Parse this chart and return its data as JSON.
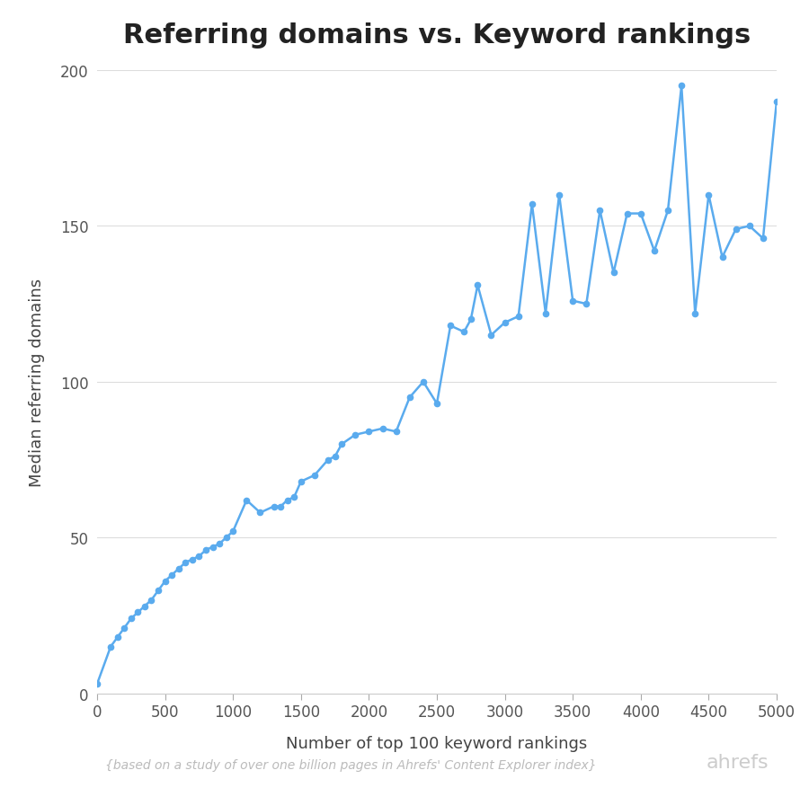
{
  "title": "Referring domains vs. Keyword rankings",
  "xlabel": "Number of top 100 keyword rankings",
  "ylabel": "Median referring domains",
  "footnote": "{based on a study of over one billion pages in Ahrefs' Content Explorer index}",
  "watermark": "ahrefs",
  "line_color": "#5aabee",
  "marker_color": "#5aabee",
  "background_color": "#ffffff",
  "grid_color": "#dddddd",
  "x": [
    0,
    100,
    150,
    200,
    250,
    300,
    350,
    400,
    450,
    500,
    550,
    600,
    650,
    700,
    750,
    800,
    850,
    900,
    950,
    1000,
    1100,
    1200,
    1300,
    1350,
    1400,
    1450,
    1500,
    1600,
    1700,
    1750,
    1800,
    1900,
    2000,
    2100,
    2200,
    2300,
    2400,
    2500,
    2600,
    2700,
    2750,
    2800,
    2900,
    3000,
    3100,
    3200,
    3300,
    3400,
    3500,
    3600,
    3700,
    3800,
    3900,
    4000,
    4100,
    4200,
    4300,
    4400,
    4500,
    4600,
    4700,
    4800,
    4900,
    5000
  ],
  "y": [
    3,
    15,
    18,
    21,
    24,
    26,
    28,
    30,
    33,
    36,
    38,
    40,
    42,
    43,
    44,
    46,
    47,
    48,
    50,
    52,
    62,
    58,
    60,
    60,
    62,
    63,
    68,
    70,
    75,
    76,
    80,
    83,
    84,
    85,
    84,
    95,
    100,
    93,
    118,
    116,
    120,
    131,
    115,
    119,
    121,
    157,
    122,
    160,
    126,
    125,
    155,
    135,
    154,
    154,
    142,
    155,
    195,
    122,
    160,
    140,
    149,
    150,
    146,
    190
  ],
  "xlim": [
    0,
    5000
  ],
  "ylim": [
    0,
    200
  ],
  "xticks": [
    0,
    500,
    1000,
    1500,
    2000,
    2500,
    3000,
    3500,
    4000,
    4500,
    5000
  ],
  "yticks": [
    0,
    50,
    100,
    150,
    200
  ],
  "title_fontsize": 22,
  "label_fontsize": 13,
  "tick_fontsize": 12,
  "footnote_fontsize": 10,
  "watermark_fontsize": 16
}
